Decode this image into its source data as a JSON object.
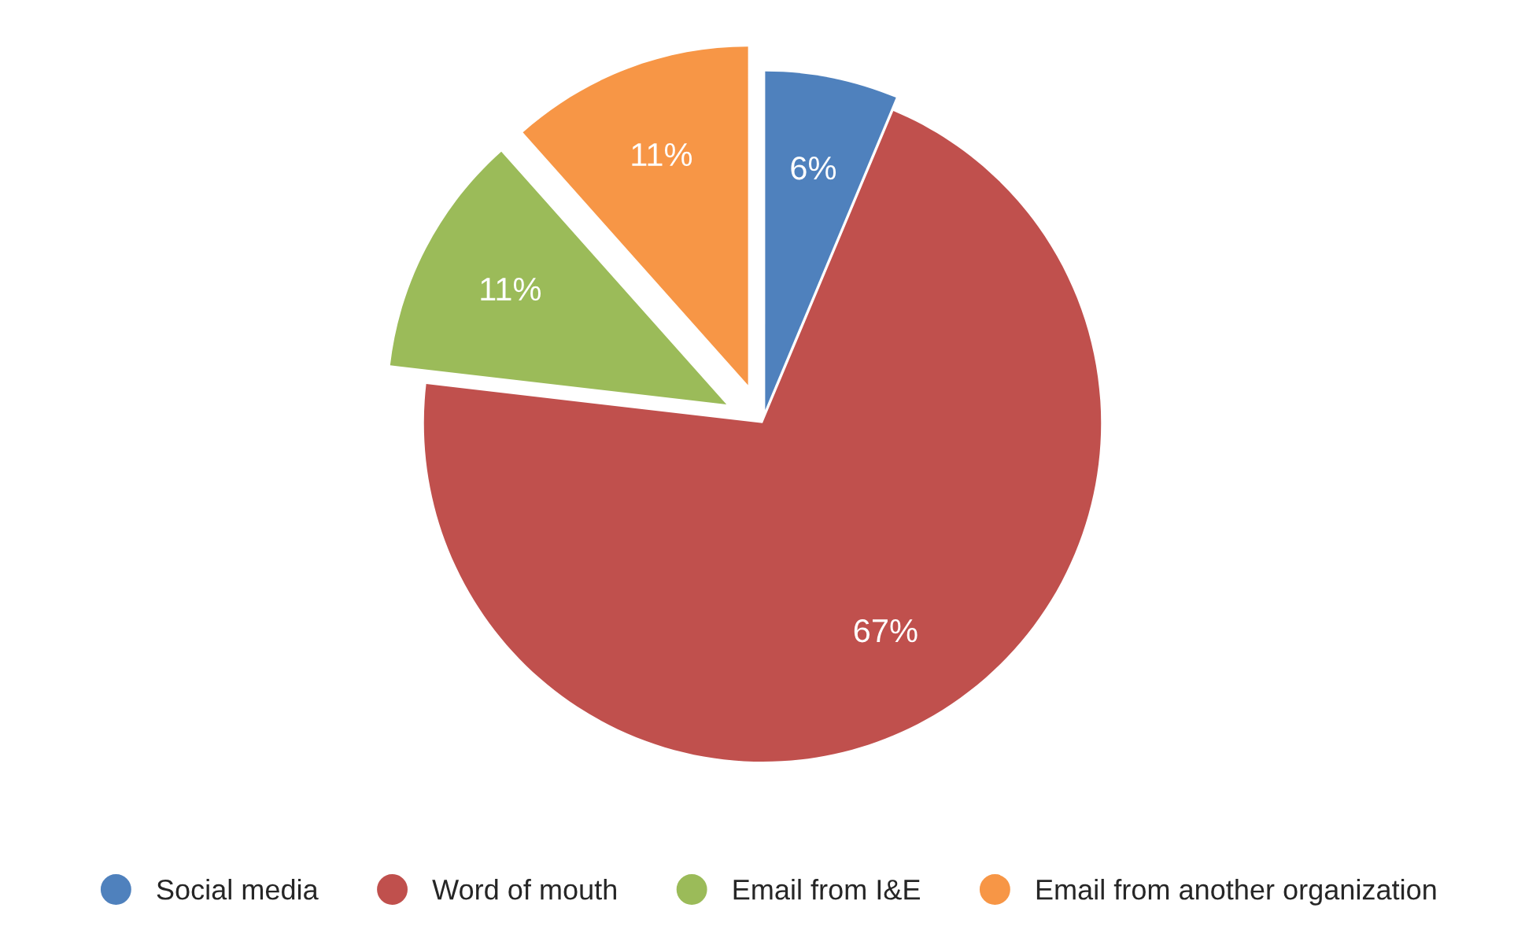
{
  "chart_data": {
    "type": "pie",
    "categories": [
      "Social media",
      "Word of mouth",
      "Email from I&E",
      "Email from another organization"
    ],
    "values": [
      6,
      67,
      11,
      11
    ],
    "colors": [
      "#4f81bd",
      "#c0504d",
      "#9bbb59",
      "#f79646"
    ],
    "value_labels": [
      "6%",
      "67%",
      "11%",
      "11%"
    ],
    "legend": "bottom"
  }
}
